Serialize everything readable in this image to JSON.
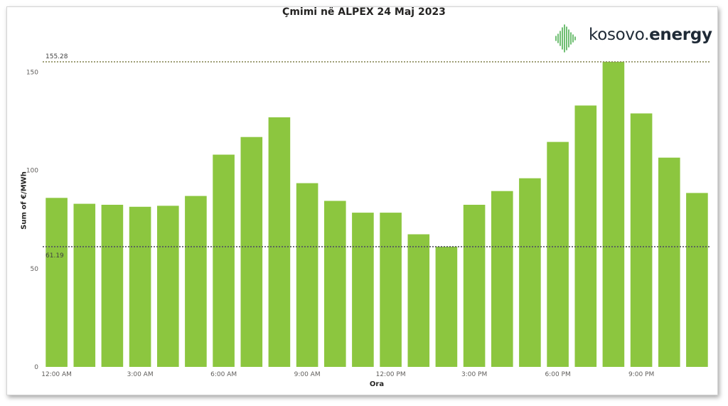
{
  "chart_data": {
    "type": "bar",
    "title": "Çmimi në ALPEX 24 Maj 2023",
    "xlabel": "Ora",
    "ylabel": "Sum of €/MWh",
    "ylim": [
      0,
      165
    ],
    "yticks": [
      "0",
      "50",
      "100",
      "150"
    ],
    "xtick_labels": [
      "12:00 AM",
      "3:00 AM",
      "6:00 AM",
      "9:00 AM",
      "12:00 PM",
      "3:00 PM",
      "6:00 PM",
      "9:00 PM"
    ],
    "categories": [
      "12:00 AM",
      "1:00 AM",
      "2:00 AM",
      "3:00 AM",
      "4:00 AM",
      "5:00 AM",
      "6:00 AM",
      "7:00 AM",
      "8:00 AM",
      "9:00 AM",
      "10:00 AM",
      "11:00 AM",
      "12:00 PM",
      "1:00 PM",
      "2:00 PM",
      "3:00 PM",
      "4:00 PM",
      "5:00 PM",
      "6:00 PM",
      "7:00 PM",
      "8:00 PM",
      "9:00 PM",
      "10:00 PM",
      "11:00 PM"
    ],
    "values": [
      86,
      83,
      82.5,
      81.5,
      82,
      87,
      108,
      117,
      127,
      93.5,
      84.5,
      78.5,
      78.5,
      67.5,
      61.19,
      82.5,
      89.5,
      96,
      114.5,
      133,
      155.28,
      129,
      106.5,
      88.5
    ],
    "reference_lines": [
      {
        "label": "155.28",
        "value": 155.28
      },
      {
        "label": "61.19",
        "value": 61.19
      }
    ],
    "bar_color": "#8cc63f",
    "grid": false
  },
  "logo": {
    "text_light": "kosovo.",
    "text_bold": "energy",
    "color": "#4caf50"
  }
}
